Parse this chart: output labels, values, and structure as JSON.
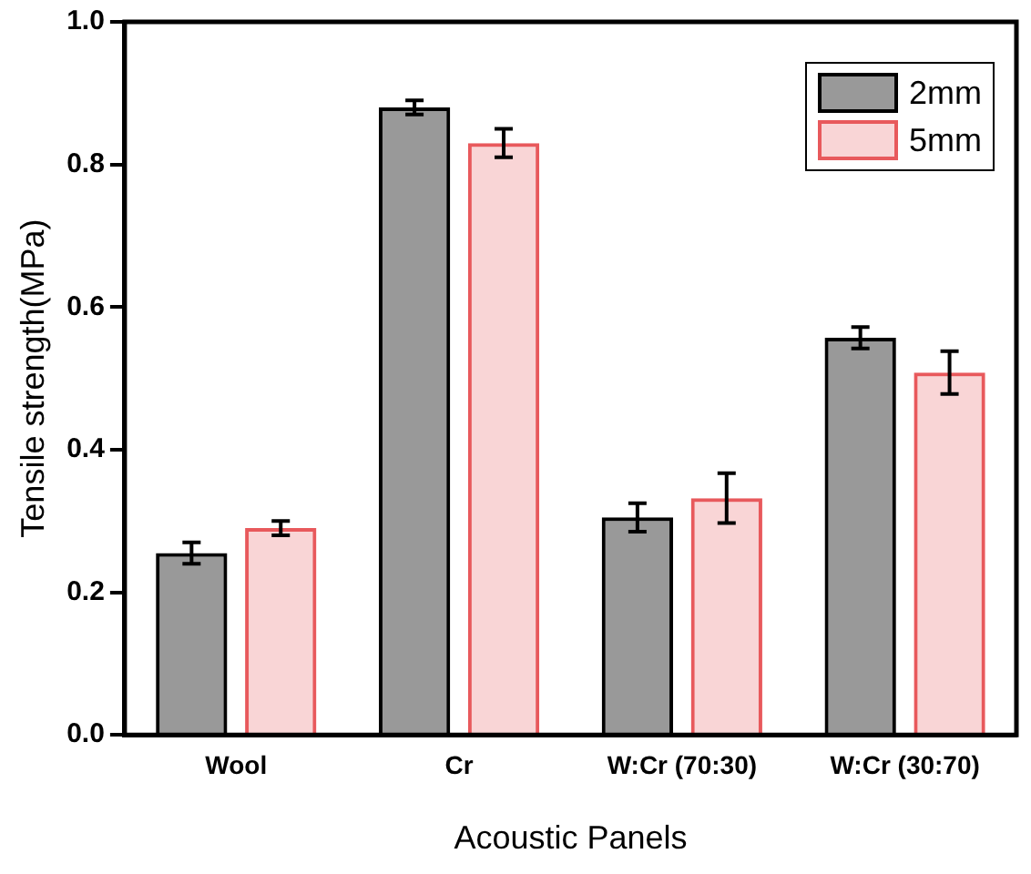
{
  "chart_data": {
    "type": "bar",
    "xlabel": "Acoustic Panels",
    "ylabel": "Tensile strength(MPa)",
    "categories": [
      "Wool",
      "Cr",
      "W:Cr (70:30)",
      "W:Cr (30:70)"
    ],
    "series": [
      {
        "name": "2mm",
        "color": "#000000",
        "values": [
          0.255,
          0.88,
          0.305,
          0.557
        ],
        "errors": [
          0.015,
          0.01,
          0.02,
          0.015
        ]
      },
      {
        "name": "5mm",
        "color": "#e8595c",
        "values": [
          0.29,
          0.83,
          0.332,
          0.508
        ],
        "errors": [
          0.01,
          0.02,
          0.035,
          0.03
        ]
      }
    ],
    "ylim": [
      0,
      1.0
    ],
    "yticks": [
      {
        "value": 0,
        "label": "0.0"
      },
      {
        "value": 0.2,
        "label": "0.2"
      },
      {
        "value": 0.4,
        "label": "0.4"
      },
      {
        "value": 0.6,
        "label": "0.6"
      },
      {
        "value": 0.8,
        "label": "0.8"
      },
      {
        "value": 1.0,
        "label": "1.0"
      }
    ],
    "grid": false,
    "legend": "top right"
  }
}
